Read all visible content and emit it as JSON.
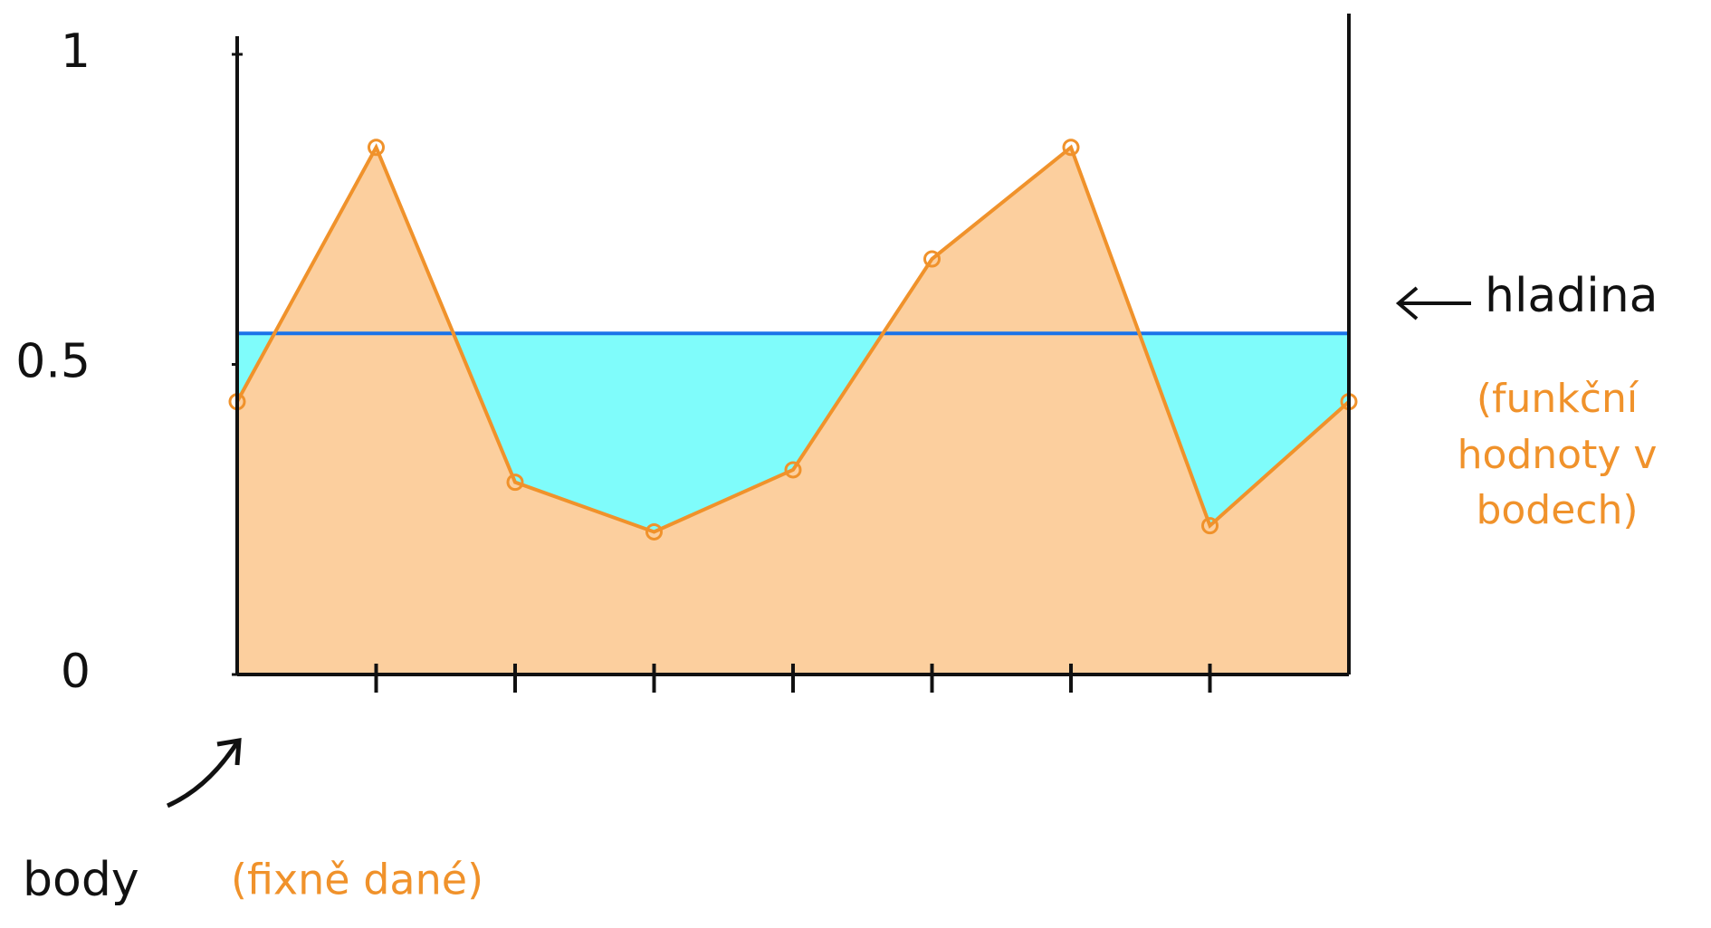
{
  "chart_data": {
    "type": "area",
    "categories": [
      null,
      null,
      null,
      null,
      null,
      null,
      null,
      null,
      null
    ],
    "values": [
      0.44,
      0.85,
      0.31,
      0.23,
      0.33,
      0.67,
      0.85,
      0.24,
      0.44
    ],
    "color": "#f0922b",
    "fill": "#fccf9e",
    "water_level": 0.55,
    "water_color": "#7ffcfb",
    "water_line_color": "#1a73e8",
    "water_label": "hladina",
    "values_note": "(funkční hodnoty v bodech)",
    "x_label": "body",
    "x_note": "(fixně dané)",
    "ylim": [
      0,
      1
    ],
    "yticks": [
      0,
      0.5,
      1
    ]
  }
}
